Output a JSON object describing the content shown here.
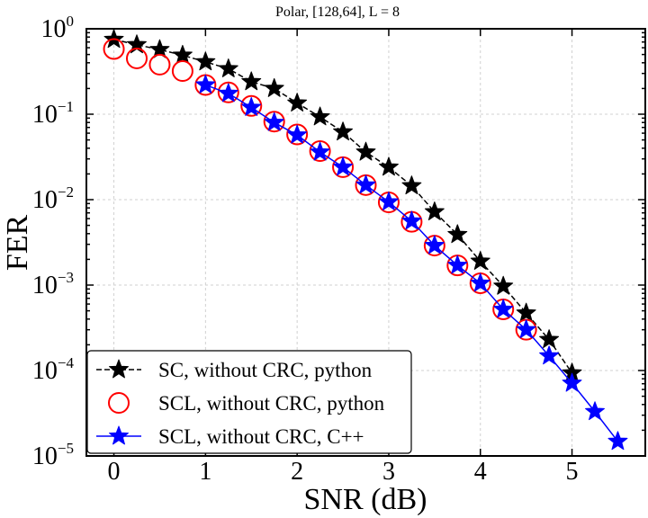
{
  "chart_data": {
    "type": "line",
    "title": "Polar, [128,64], L = 8",
    "xlabel": "SNR (dB)",
    "ylabel": "FER",
    "xlim": [
      -0.3,
      5.8
    ],
    "ylim": [
      1e-05,
      1
    ],
    "yscale": "log",
    "grid": true,
    "legend_position": "lower-left",
    "x_ticks": [
      0,
      1,
      2,
      3,
      4,
      5
    ],
    "y_ticks": [
      {
        "value": 1,
        "base": "10",
        "exp": "0"
      },
      {
        "value": 0.1,
        "base": "10",
        "exp": "−1"
      },
      {
        "value": 0.01,
        "base": "10",
        "exp": "−2"
      },
      {
        "value": 0.001,
        "base": "10",
        "exp": "−3"
      },
      {
        "value": 0.0001,
        "base": "10",
        "exp": "−4"
      },
      {
        "value": 1e-05,
        "base": "10",
        "exp": "−5"
      }
    ],
    "series": [
      {
        "name": "SC, without CRC, python",
        "color": "#000000",
        "marker": "star",
        "line": "dashed",
        "x": [
          0,
          0.25,
          0.5,
          0.75,
          1,
          1.25,
          1.5,
          1.75,
          2,
          2.25,
          2.5,
          2.75,
          3,
          3.25,
          3.5,
          3.75,
          4,
          4.25,
          4.5,
          4.75,
          5
        ],
        "y": [
          0.75,
          0.65,
          0.57,
          0.49,
          0.41,
          0.34,
          0.24,
          0.2,
          0.135,
          0.093,
          0.062,
          0.036,
          0.024,
          0.0145,
          0.0072,
          0.0039,
          0.0019,
          0.00097,
          0.00047,
          0.00023,
          9.35e-05
        ]
      },
      {
        "name": "SCL, without CRC, python",
        "color": "#ff0000",
        "marker": "circle",
        "line": "none",
        "x": [
          0,
          0.25,
          0.5,
          0.75,
          1,
          1.25,
          1.5,
          1.75,
          2,
          2.25,
          2.5,
          2.75,
          3,
          3.25,
          3.5,
          3.75,
          4,
          4.25,
          4.5
        ],
        "y": [
          0.58,
          0.45,
          0.38,
          0.32,
          0.22,
          0.18,
          0.125,
          0.082,
          0.058,
          0.037,
          0.024,
          0.0148,
          0.0093,
          0.0055,
          0.0029,
          0.0017,
          0.00105,
          0.00052,
          0.0003
        ]
      },
      {
        "name": "SCL, without CRC, C++",
        "color": "#0000ff",
        "marker": "star",
        "line": "solid",
        "x": [
          1,
          1.25,
          1.5,
          1.75,
          2,
          2.25,
          2.5,
          2.75,
          3,
          3.25,
          3.5,
          3.75,
          4,
          4.25,
          4.5,
          4.75,
          5,
          5.25,
          5.5
        ],
        "y": [
          0.22,
          0.175,
          0.12,
          0.08,
          0.057,
          0.036,
          0.024,
          0.0148,
          0.0094,
          0.0056,
          0.0029,
          0.0017,
          0.00105,
          0.00052,
          0.0003,
          0.000148,
          7.1e-05,
          3.3e-05,
          1.48e-05
        ]
      }
    ]
  }
}
